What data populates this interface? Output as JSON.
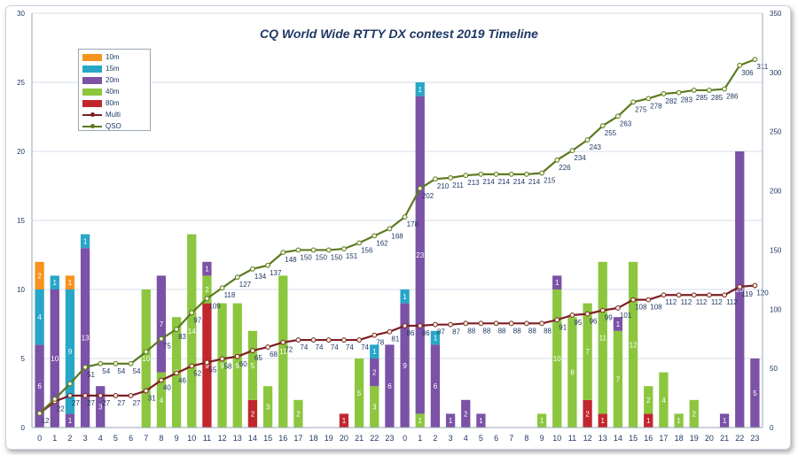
{
  "chart_data": {
    "type": "bar",
    "title": "CQ World  Wide RTTY DX contest 2019 Timeline",
    "categories": [
      "0",
      "1",
      "2",
      "3",
      "4",
      "5",
      "6",
      "7",
      "8",
      "9",
      "10",
      "11",
      "12",
      "13",
      "14",
      "15",
      "16",
      "17",
      "18",
      "19",
      "20",
      "21",
      "22",
      "23",
      "0",
      "1",
      "2",
      "3",
      "4",
      "5",
      "6",
      "7",
      "8",
      "9",
      "10",
      "11",
      "12",
      "13",
      "14",
      "15",
      "16",
      "17",
      "18",
      "19",
      "20",
      "21",
      "22",
      "23"
    ],
    "y_left": {
      "min": 0,
      "max": 30,
      "ticks": [
        "0",
        "5",
        "10",
        "15",
        "20",
        "25",
        "30"
      ]
    },
    "y_right": {
      "min": 0,
      "max": 350,
      "ticks": [
        "0",
        "50",
        "100",
        "150",
        "200",
        "250",
        "300",
        "350"
      ]
    },
    "bar_series": [
      {
        "name": "80m",
        "color": "#c0272d",
        "values": [
          0,
          0,
          0,
          0,
          0,
          0,
          0,
          0,
          0,
          0,
          0,
          9,
          0,
          0,
          2,
          0,
          0,
          0,
          0,
          0,
          1,
          0,
          0,
          0,
          0,
          0,
          0,
          0,
          0,
          0,
          0,
          0,
          0,
          0,
          0,
          0,
          2,
          1,
          0,
          0,
          1,
          0,
          0,
          0,
          0,
          0,
          0,
          0
        ]
      },
      {
        "name": "40m",
        "color": "#8cc63f",
        "values": [
          0,
          0,
          0,
          0,
          0,
          0,
          0,
          10,
          4,
          8,
          14,
          2,
          9,
          9,
          5,
          3,
          11,
          2,
          0,
          0,
          0,
          5,
          3,
          0,
          0,
          1,
          0,
          0,
          0,
          0,
          0,
          0,
          0,
          1,
          10,
          8,
          7,
          11,
          7,
          12,
          2,
          4,
          1,
          2,
          0,
          0,
          0,
          0
        ]
      },
      {
        "name": "20m",
        "color": "#7b52a6",
        "values": [
          6,
          10,
          1,
          13,
          3,
          0,
          0,
          0,
          7,
          0,
          0,
          1,
          0,
          0,
          0,
          0,
          0,
          0,
          0,
          0,
          0,
          0,
          2,
          6,
          9,
          23,
          6,
          1,
          2,
          1,
          0,
          0,
          0,
          0,
          1,
          0,
          0,
          0,
          1,
          0,
          0,
          0,
          0,
          0,
          0,
          1,
          20,
          5
        ]
      },
      {
        "name": "15m",
        "color": "#27a6c8",
        "values": [
          4,
          1,
          9,
          1,
          0,
          0,
          0,
          0,
          0,
          0,
          0,
          0,
          0,
          0,
          0,
          0,
          0,
          0,
          0,
          0,
          0,
          0,
          1,
          0,
          1,
          1,
          1,
          0,
          0,
          0,
          0,
          0,
          0,
          0,
          0,
          0,
          0,
          0,
          0,
          0,
          0,
          0,
          0,
          0,
          0,
          0,
          0,
          0
        ]
      },
      {
        "name": "10m",
        "color": "#f7931e",
        "values": [
          2,
          0,
          1,
          0,
          0,
          0,
          0,
          0,
          0,
          0,
          0,
          0,
          0,
          0,
          0,
          0,
          0,
          0,
          0,
          0,
          0,
          0,
          0,
          0,
          0,
          0,
          0,
          0,
          0,
          0,
          0,
          0,
          0,
          0,
          0,
          0,
          0,
          0,
          0,
          0,
          0,
          0,
          0,
          0,
          0,
          0,
          0,
          0
        ]
      }
    ],
    "line_series": [
      {
        "name": "Multi",
        "color": "#7b1f24",
        "axis": "right",
        "values": [
          12,
          22,
          27,
          27,
          27,
          27,
          27,
          31,
          40,
          46,
          52,
          55,
          58,
          60,
          65,
          68,
          72,
          74,
          74,
          74,
          74,
          74,
          78,
          81,
          86,
          86,
          87,
          87,
          88,
          88,
          88,
          88,
          88,
          88,
          91,
          95,
          96,
          99,
          101,
          108,
          108,
          112,
          112,
          112,
          112,
          112,
          119,
          120
        ],
        "labels": [
          "12",
          "22",
          "27",
          "27",
          "27",
          "27",
          "27",
          "31",
          "40",
          "46",
          "52",
          "55",
          "58",
          "60",
          "65",
          "68",
          "72",
          "74",
          "74",
          "74",
          "74",
          "74",
          "78",
          "81",
          "86",
          "86",
          "87",
          "87",
          "88",
          "88",
          "88",
          "88",
          "88",
          "88",
          "91",
          "95",
          "96",
          "99",
          "101",
          "108",
          "108",
          "112",
          "112",
          "112",
          "112",
          "112",
          "119",
          "120"
        ]
      },
      {
        "name": "QSO",
        "color": "#5a7a1f",
        "axis": "right",
        "values": [
          12,
          24,
          37,
          51,
          54,
          54,
          54,
          64,
          75,
          83,
          97,
          109,
          118,
          127,
          134,
          137,
          148,
          150,
          150,
          150,
          151,
          156,
          162,
          168,
          178,
          202,
          210,
          211,
          213,
          214,
          214,
          214,
          214,
          215,
          226,
          234,
          243,
          255,
          263,
          275,
          278,
          282,
          283,
          285,
          285,
          286,
          306,
          311
        ],
        "labels": [
          "",
          "",
          "",
          "51",
          "54",
          "54",
          "54",
          "",
          "75",
          "83",
          "97",
          "109",
          "118",
          "127",
          "134",
          "137",
          "148",
          "150",
          "150",
          "150",
          "151",
          "156",
          "162",
          "168",
          "178",
          "202",
          "210",
          "211",
          "213",
          "214",
          "214",
          "214",
          "214",
          "215",
          "226",
          "234",
          "243",
          "255",
          "263",
          "275",
          "278",
          "282",
          "283",
          "285",
          "285",
          "286",
          "306",
          "311"
        ]
      }
    ]
  }
}
